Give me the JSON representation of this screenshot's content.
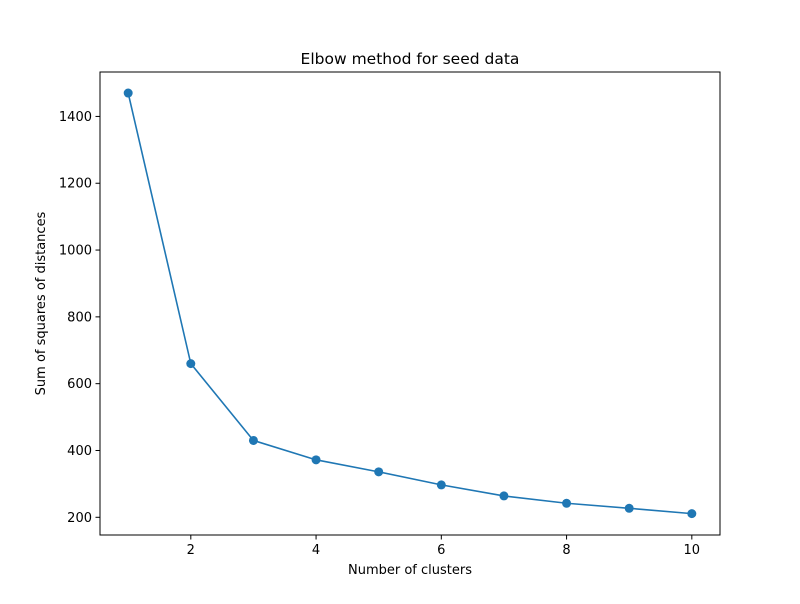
{
  "chart_data": {
    "type": "line",
    "title": "Elbow method for seed data",
    "xlabel": "Number of clusters",
    "ylabel": "Sum of squares of distances",
    "x": [
      1,
      2,
      3,
      4,
      5,
      6,
      7,
      8,
      9,
      10
    ],
    "series": [
      {
        "values": [
          1470,
          660,
          430,
          372,
          336,
          297,
          264,
          242,
          227,
          211
        ]
      }
    ],
    "xlim": [
      0.55,
      10.45
    ],
    "ylim": [
      147,
      1533
    ],
    "xticks": [
      2,
      4,
      6,
      8,
      10
    ],
    "xtick_labels": [
      "2",
      "4",
      "6",
      "8",
      "10"
    ],
    "yticks": [
      200,
      400,
      600,
      800,
      1000,
      1200,
      1400
    ],
    "ytick_labels": [
      "200",
      "400",
      "600",
      "800",
      "1000",
      "1200",
      "1400"
    ],
    "grid": false,
    "markers": true,
    "colors": {
      "series": "#1f77b4",
      "axes": "#000000"
    }
  }
}
